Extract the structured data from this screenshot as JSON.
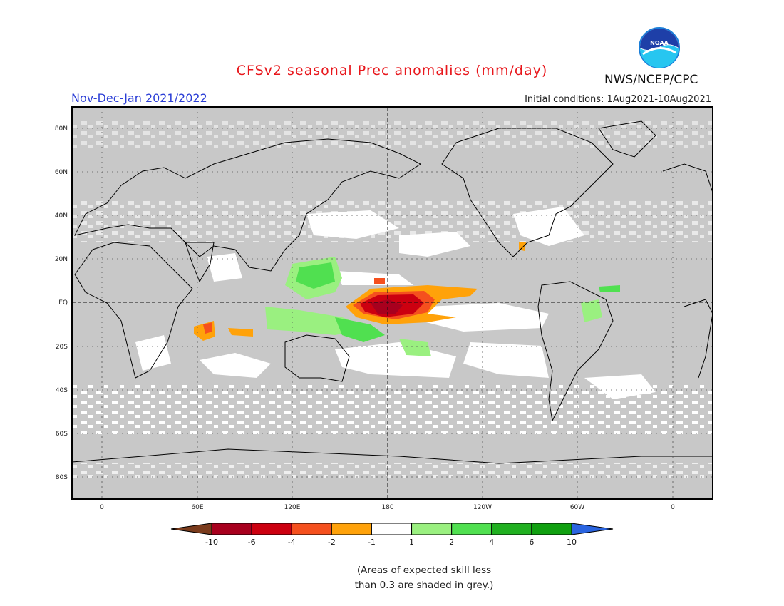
{
  "title": "CFSv2 seasonal Prec anomalies (mm/day)",
  "period": "Nov-Dec-Jan 2021/2022",
  "initial_conditions": "Initial conditions: 1Aug2021-10Aug2021",
  "organization": "NWS/NCEP/CPC",
  "logo_text": "NOAA",
  "lat_labels": [
    "80N",
    "60N",
    "40N",
    "20N",
    "EQ",
    "20S",
    "40S",
    "60S",
    "80S"
  ],
  "lon_labels": [
    "0",
    "60E",
    "120E",
    "180",
    "120W",
    "60W",
    "0"
  ],
  "colorbar": {
    "labels": [
      "-10",
      "-6",
      "-4",
      "-2",
      "-1",
      "1",
      "2",
      "4",
      "6",
      "10"
    ],
    "colors": [
      "#7a3b1c",
      "#a8001e",
      "#cc0010",
      "#f5501e",
      "#ffa20a",
      "#ffffff",
      "#9af080",
      "#50e050",
      "#20b020",
      "#10a010",
      "#2a64e0"
    ]
  },
  "colors": {
    "mask_grey": "#c8c8c8",
    "neutral": "#ffffff",
    "title_red": "#e8161b",
    "period_blue": "#2b3ed6"
  },
  "note_lines": [
    "(Areas of expected skill less",
    "than 0.3 are shaded in grey.)"
  ]
}
